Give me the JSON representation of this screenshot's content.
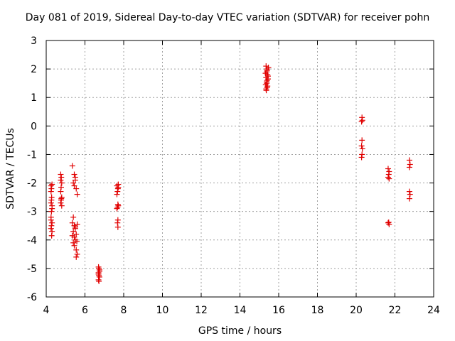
{
  "chart_data": {
    "type": "scatter",
    "title": "Day 081 of 2019, Sidereal Day-to-day VTEC variation (SDTVAR) for receiver pohn",
    "xlabel": "GPS time / hours",
    "ylabel": "SDTVAR / TECUs",
    "xlim": [
      4,
      24
    ],
    "ylim": [
      -6,
      3
    ],
    "xticks": [
      4,
      6,
      8,
      10,
      12,
      14,
      16,
      18,
      20,
      22,
      24
    ],
    "yticks": [
      -6,
      -5,
      -4,
      -3,
      -2,
      -1,
      0,
      1,
      2,
      3
    ],
    "grid": true,
    "marker": "+",
    "color": "#e00000",
    "series": [
      {
        "name": "pohn",
        "points": [
          [
            4.25,
            -2.1
          ],
          [
            4.27,
            -2.2
          ],
          [
            4.25,
            -2.3
          ],
          [
            4.3,
            -2.05
          ],
          [
            4.28,
            -2.5
          ],
          [
            4.25,
            -2.7
          ],
          [
            4.3,
            -2.8
          ],
          [
            4.27,
            -3.0
          ],
          [
            4.25,
            -3.2
          ],
          [
            4.3,
            -3.4
          ],
          [
            4.27,
            -3.5
          ],
          [
            4.25,
            -3.6
          ],
          [
            4.3,
            -3.7
          ],
          [
            4.28,
            -3.85
          ],
          [
            4.25,
            -3.3
          ],
          [
            4.3,
            -2.9
          ],
          [
            4.27,
            -2.6
          ],
          [
            4.75,
            -1.7
          ],
          [
            4.78,
            -1.8
          ],
          [
            4.75,
            -1.9
          ],
          [
            4.8,
            -2.0
          ],
          [
            4.77,
            -2.15
          ],
          [
            4.75,
            -2.3
          ],
          [
            4.8,
            -2.5
          ],
          [
            4.77,
            -2.6
          ],
          [
            4.75,
            -2.7
          ],
          [
            4.8,
            -2.8
          ],
          [
            4.78,
            -2.55
          ],
          [
            5.35,
            -1.4
          ],
          [
            5.45,
            -1.7
          ],
          [
            5.5,
            -1.9
          ],
          [
            5.4,
            -2.0
          ],
          [
            5.45,
            -2.1
          ],
          [
            5.55,
            -2.2
          ],
          [
            5.6,
            -2.4
          ],
          [
            5.5,
            -1.8
          ],
          [
            5.4,
            -3.2
          ],
          [
            5.35,
            -3.4
          ],
          [
            5.45,
            -3.5
          ],
          [
            5.5,
            -3.6
          ],
          [
            5.4,
            -3.7
          ],
          [
            5.55,
            -3.8
          ],
          [
            5.45,
            -3.9
          ],
          [
            5.5,
            -4.0
          ],
          [
            5.4,
            -4.1
          ],
          [
            5.45,
            -4.2
          ],
          [
            5.55,
            -4.35
          ],
          [
            5.6,
            -4.5
          ],
          [
            5.55,
            -4.6
          ],
          [
            5.5,
            -3.55
          ],
          [
            5.6,
            -3.45
          ],
          [
            5.35,
            -3.85
          ],
          [
            5.58,
            -4.05
          ],
          [
            6.7,
            -4.95
          ],
          [
            6.72,
            -5.0
          ],
          [
            6.75,
            -5.1
          ],
          [
            6.7,
            -5.15
          ],
          [
            6.72,
            -5.25
          ],
          [
            6.75,
            -5.3
          ],
          [
            6.7,
            -5.4
          ],
          [
            6.72,
            -5.45
          ],
          [
            6.75,
            -5.05
          ],
          [
            6.7,
            -5.2
          ],
          [
            7.65,
            -2.1
          ],
          [
            7.7,
            -2.2
          ],
          [
            7.68,
            -2.3
          ],
          [
            7.72,
            -2.15
          ],
          [
            7.65,
            -2.4
          ],
          [
            7.7,
            -2.75
          ],
          [
            7.68,
            -2.85
          ],
          [
            7.72,
            -2.8
          ],
          [
            7.65,
            -2.9
          ],
          [
            7.7,
            -3.3
          ],
          [
            7.68,
            -3.4
          ],
          [
            7.7,
            -3.55
          ],
          [
            7.72,
            -2.05
          ],
          [
            15.35,
            2.1
          ],
          [
            15.4,
            2.0
          ],
          [
            15.38,
            1.9
          ],
          [
            15.42,
            1.8
          ],
          [
            15.35,
            1.7
          ],
          [
            15.4,
            1.6
          ],
          [
            15.38,
            1.5
          ],
          [
            15.42,
            1.4
          ],
          [
            15.35,
            1.3
          ],
          [
            15.4,
            1.35
          ],
          [
            15.38,
            1.55
          ],
          [
            15.45,
            1.75
          ],
          [
            15.32,
            1.85
          ],
          [
            15.47,
            2.05
          ],
          [
            15.33,
            1.45
          ],
          [
            15.45,
            1.65
          ],
          [
            15.4,
            1.95
          ],
          [
            15.36,
            1.25
          ],
          [
            20.3,
            0.3
          ],
          [
            20.32,
            0.2
          ],
          [
            20.28,
            0.15
          ],
          [
            20.3,
            -0.5
          ],
          [
            20.28,
            -0.7
          ],
          [
            20.32,
            -0.8
          ],
          [
            20.3,
            -1.0
          ],
          [
            20.28,
            -1.1
          ],
          [
            21.65,
            -1.5
          ],
          [
            21.7,
            -1.6
          ],
          [
            21.68,
            -1.7
          ],
          [
            21.65,
            -1.8
          ],
          [
            21.7,
            -1.85
          ],
          [
            21.65,
            -3.4
          ],
          [
            21.7,
            -3.45
          ],
          [
            21.68,
            -3.38
          ],
          [
            22.75,
            -1.2
          ],
          [
            22.78,
            -1.35
          ],
          [
            22.75,
            -1.45
          ],
          [
            22.75,
            -2.3
          ],
          [
            22.78,
            -2.4
          ],
          [
            22.75,
            -2.55
          ]
        ]
      }
    ]
  }
}
